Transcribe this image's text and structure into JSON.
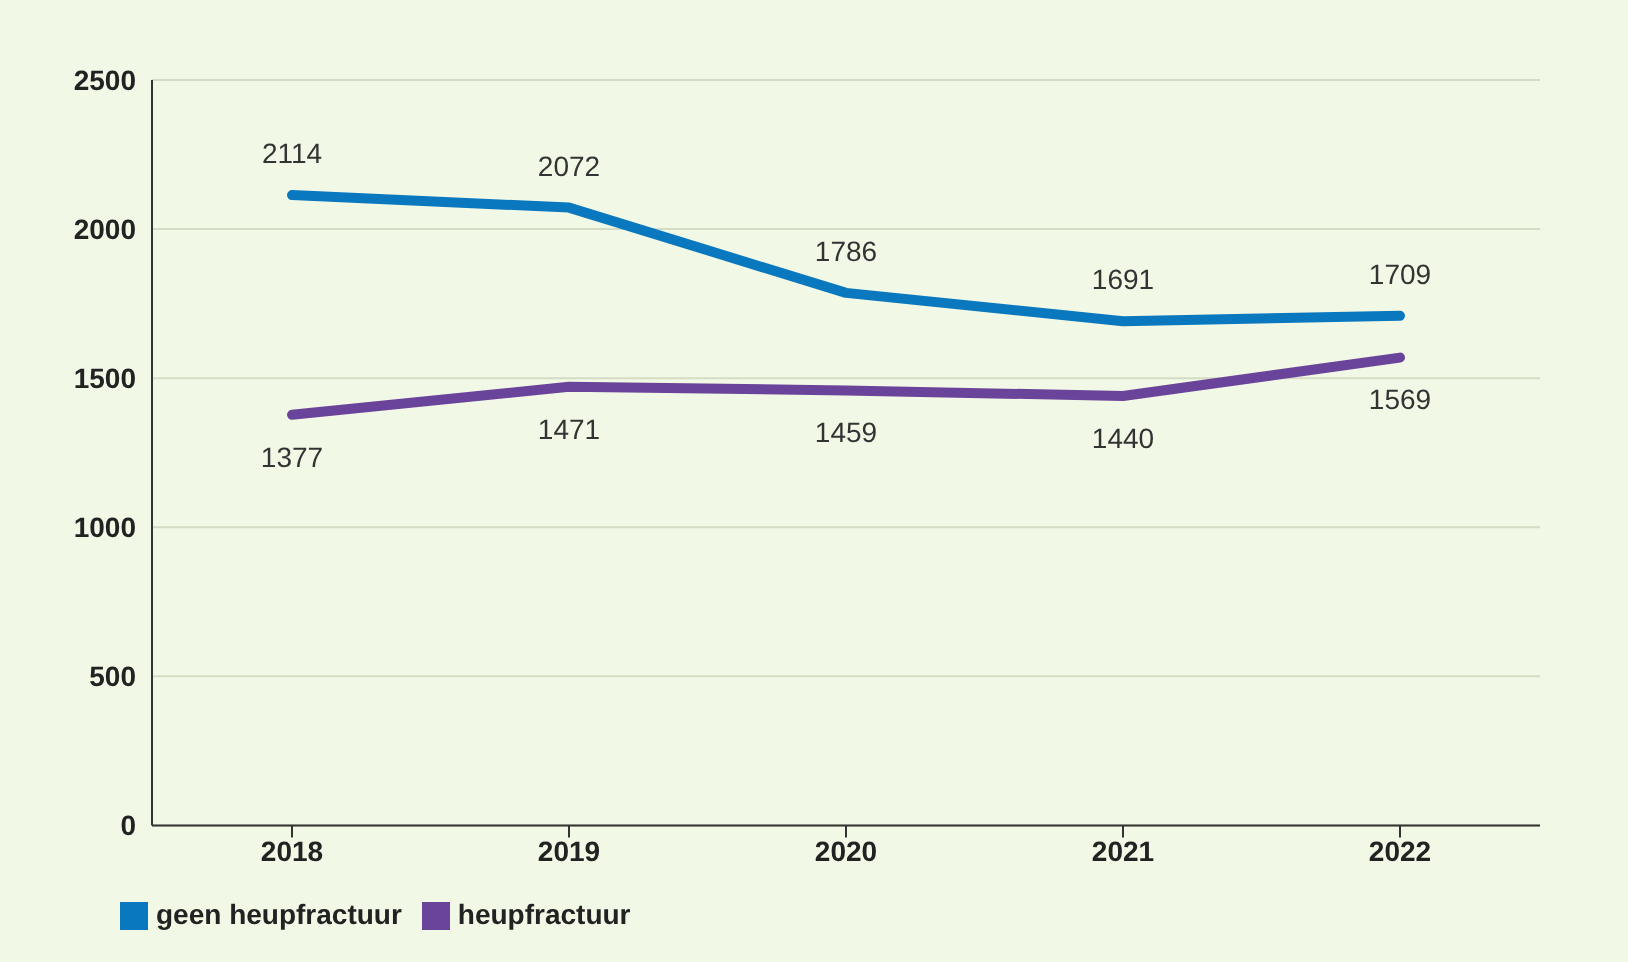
{
  "chart_data": {
    "type": "line",
    "categories": [
      "2018",
      "2019",
      "2020",
      "2021",
      "2022"
    ],
    "series": [
      {
        "name": "geen heupfractuur",
        "color": "#0a78bf",
        "values": [
          2114,
          2072,
          1786,
          1691,
          1709
        ]
      },
      {
        "name": "heupfractuur",
        "color": "#6a449a",
        "values": [
          1377,
          1471,
          1459,
          1440,
          1569
        ]
      }
    ],
    "ylim": [
      0,
      2500
    ],
    "yticks": [
      0,
      500,
      1000,
      1500,
      2000,
      2500
    ],
    "grid": "y",
    "legend": "bottom left",
    "data_labels": true,
    "marker": "none",
    "line_style": "solid"
  }
}
